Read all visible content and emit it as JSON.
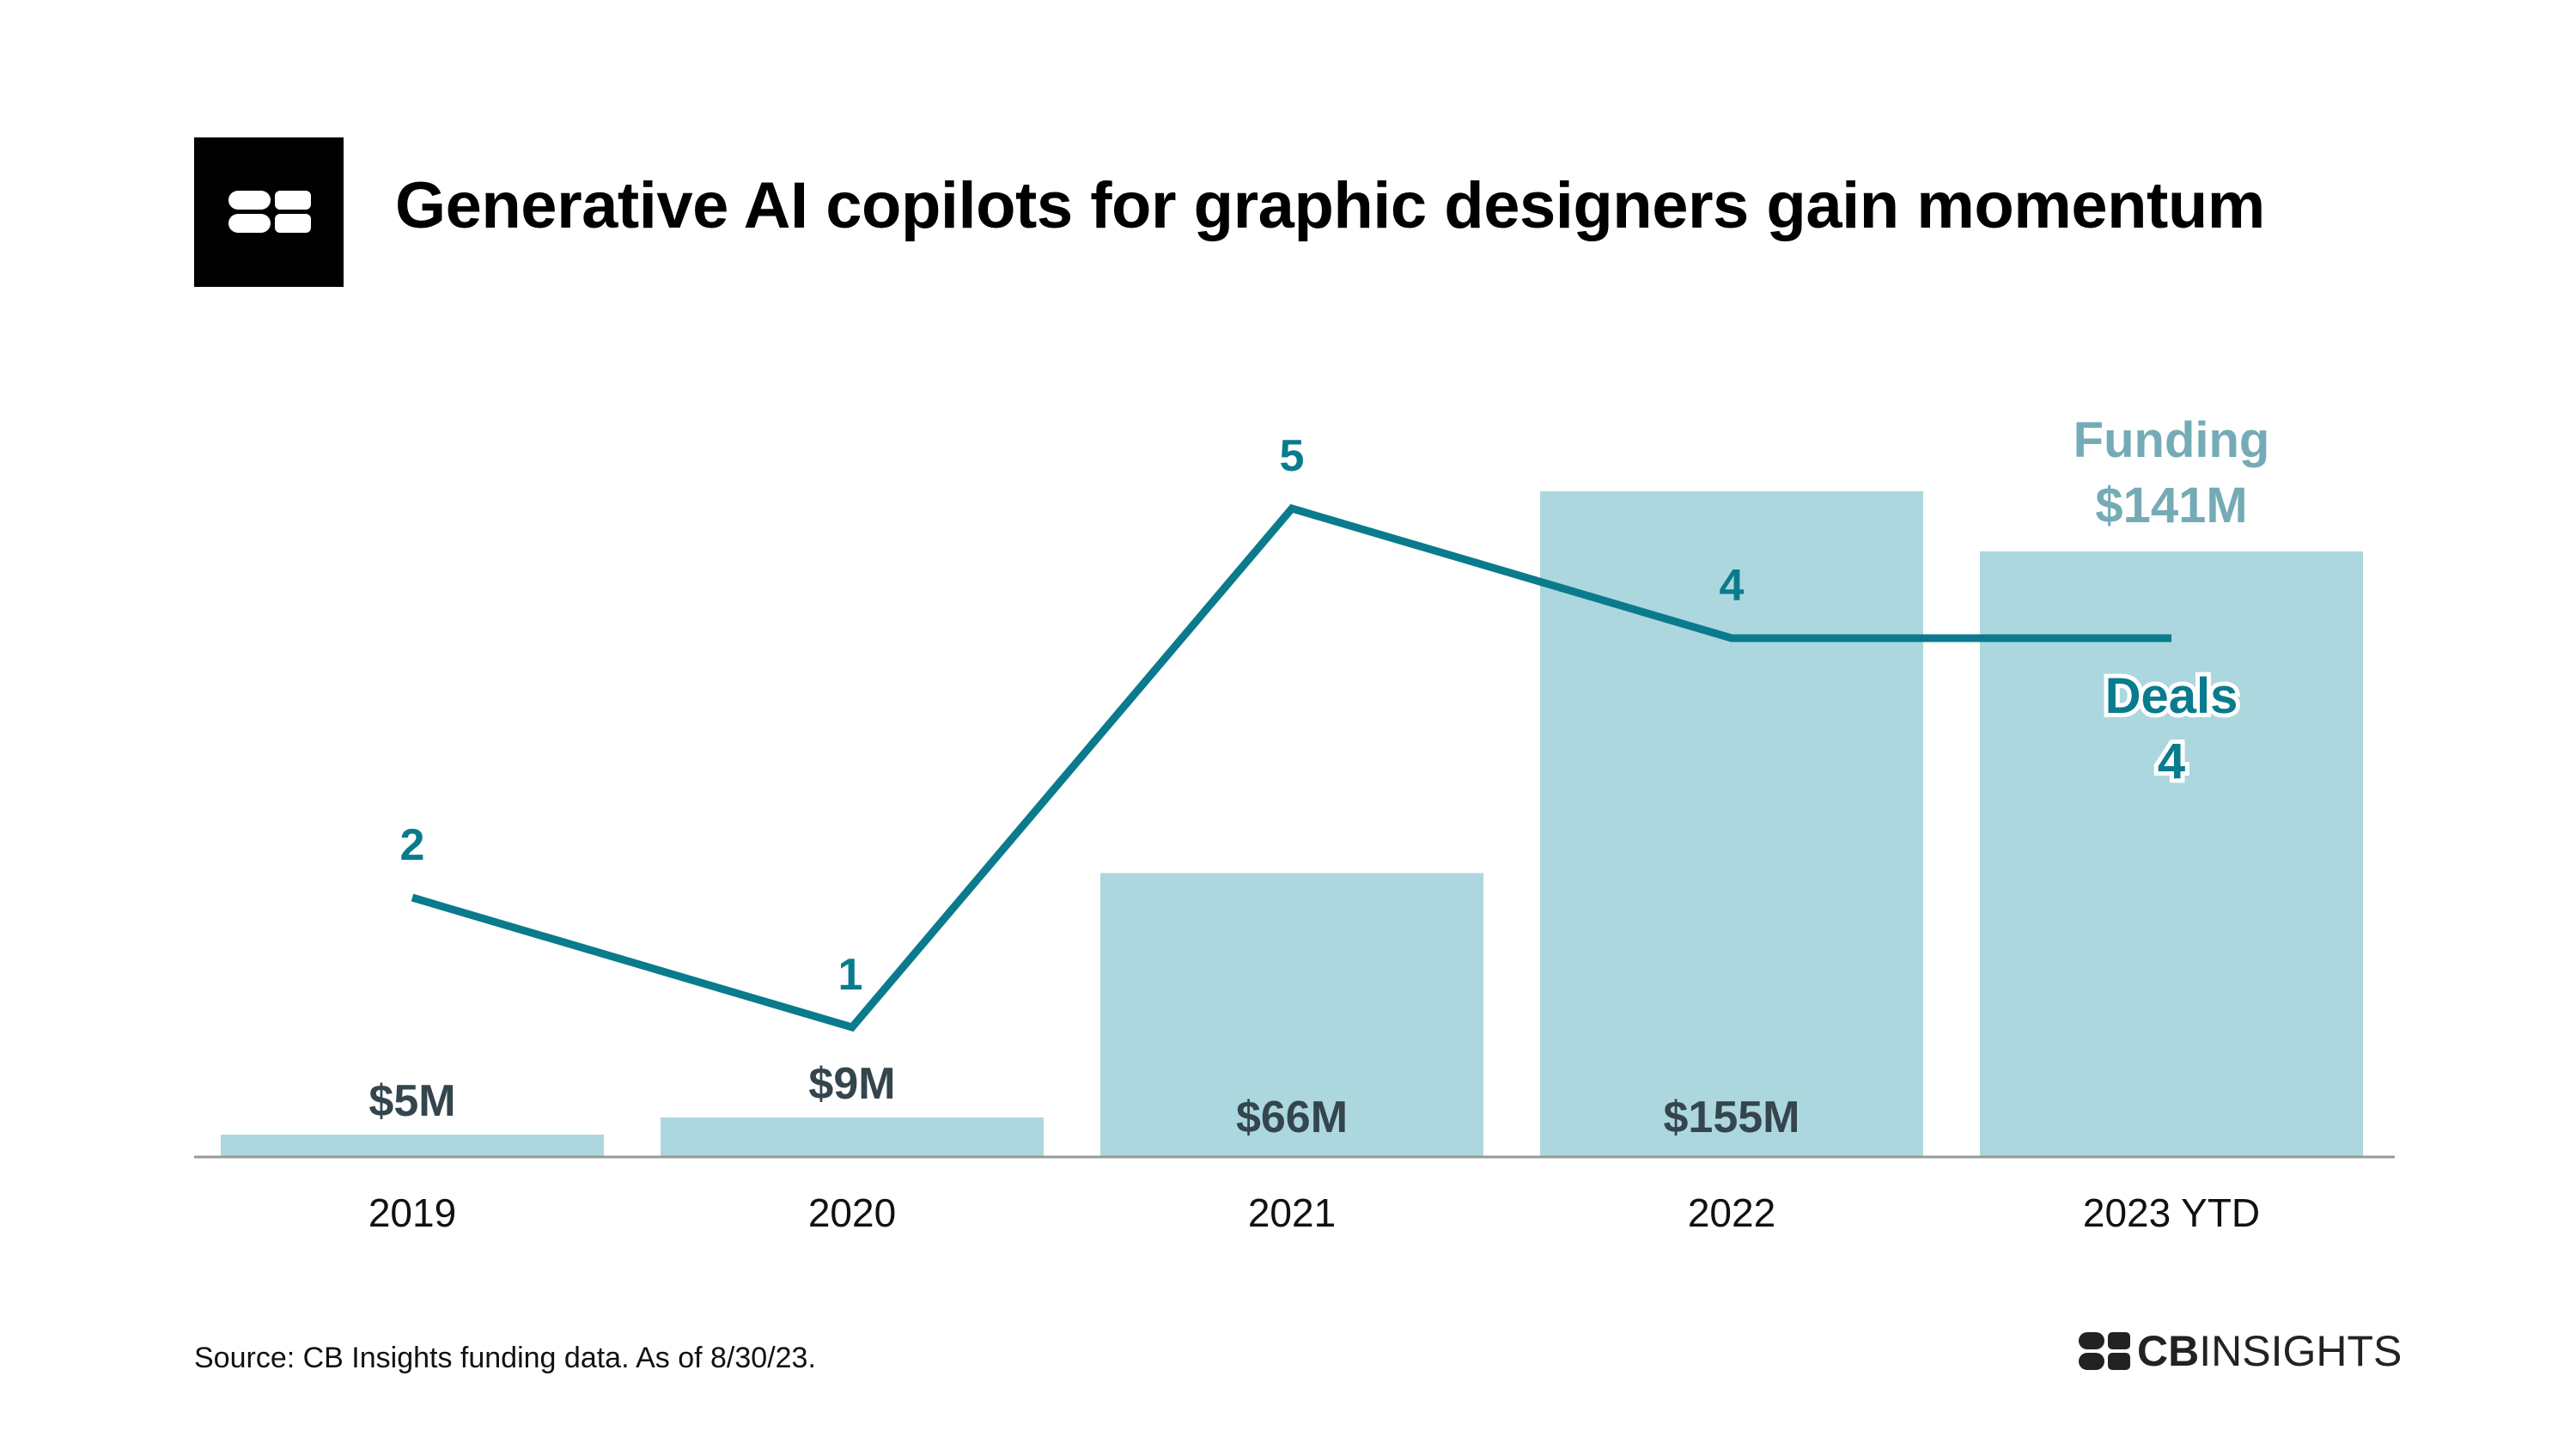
{
  "header": {
    "title": "Generative AI copilots for graphic designers gain momentum"
  },
  "footer": {
    "source": "Source: CB Insights funding data. As of 8/30/23.",
    "brand_bold": "CB",
    "brand_light": "INSIGHTS"
  },
  "colors": {
    "bar": "#acd7df",
    "line": "#0a7b8c",
    "bar_label": "#34454d",
    "legend_funding": "#74abb6",
    "axis": "#999999"
  },
  "chart_data": {
    "type": "bar",
    "categories": [
      "2019",
      "2020",
      "2021",
      "2022",
      "2023 YTD"
    ],
    "series": [
      {
        "name": "Funding",
        "kind": "bar",
        "unit": "$M",
        "values": [
          5,
          9,
          66,
          155,
          141
        ],
        "labels": [
          "$5M",
          "$9M",
          "$66M",
          "$155M",
          "$141M"
        ]
      },
      {
        "name": "Deals",
        "kind": "line",
        "values": [
          2,
          1,
          5,
          4,
          4
        ],
        "labels": [
          "2",
          "1",
          "5",
          "4",
          "4"
        ]
      }
    ],
    "legend": {
      "funding_name": "Funding",
      "funding_value": "$141M",
      "deals_name": "Deals",
      "deals_value": "4"
    },
    "grid": false
  }
}
